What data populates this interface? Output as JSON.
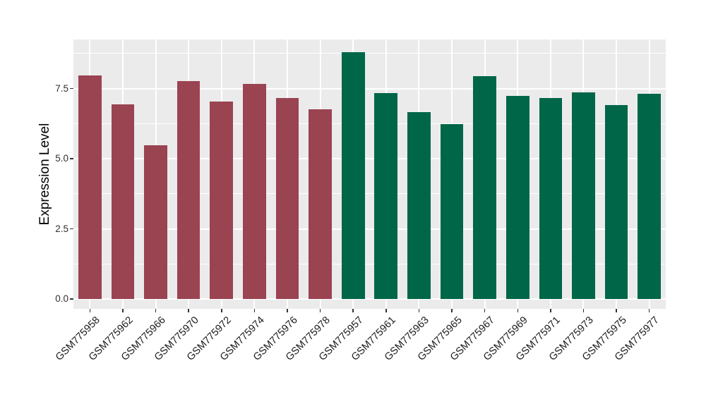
{
  "chart_data": {
    "type": "bar",
    "title": "",
    "xlabel": "",
    "ylabel": "Expression Level",
    "grid": true,
    "legend_position": "none",
    "panel_background": "#EBEBEB",
    "gridline_color": "#FFFFFF",
    "ylim": [
      -0.35,
      9.25
    ],
    "yticks": [
      0,
      2.5,
      5,
      7.5
    ],
    "ytick_labels": [
      "0.0",
      "2.5",
      "5.0",
      "7.5"
    ],
    "yticks_minor": [
      1.25,
      3.75,
      6.25,
      8.75
    ],
    "categories": [
      "GSM775958",
      "GSM775962",
      "GSM775966",
      "GSM775970",
      "GSM775972",
      "GSM775974",
      "GSM775976",
      "GSM775978",
      "GSM775957",
      "GSM775961",
      "GSM775963",
      "GSM775965",
      "GSM775967",
      "GSM775969",
      "GSM775971",
      "GSM775973",
      "GSM775975",
      "GSM775977"
    ],
    "values": [
      7.96,
      6.94,
      5.48,
      7.76,
      7.03,
      7.67,
      7.17,
      6.76,
      8.79,
      7.34,
      6.67,
      6.23,
      7.95,
      7.24,
      7.16,
      7.36,
      6.91,
      7.31
    ],
    "bar_colors": [
      "#9A4351",
      "#9A4351",
      "#9A4351",
      "#9A4351",
      "#9A4351",
      "#9A4351",
      "#9A4351",
      "#9A4351",
      "#006648",
      "#006648",
      "#006648",
      "#006648",
      "#006648",
      "#006648",
      "#006648",
      "#006648",
      "#006648",
      "#006648"
    ],
    "group_colors": {
      "group1": "#9A4351",
      "group2": "#006648"
    },
    "tick_color": "#333333"
  }
}
